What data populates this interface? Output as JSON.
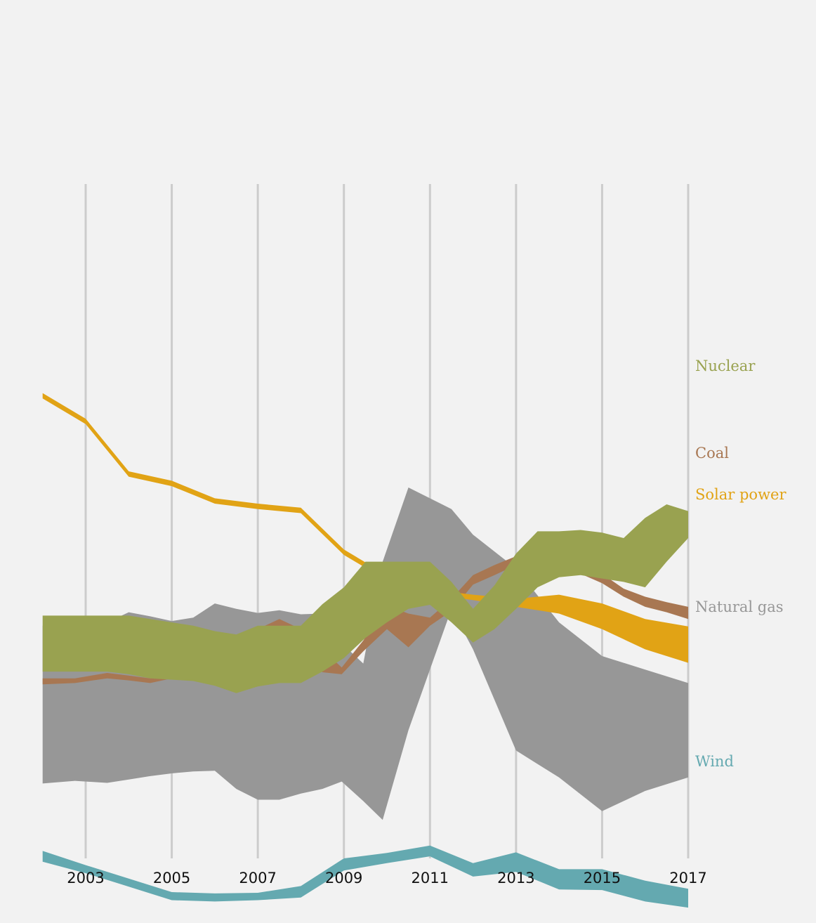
{
  "chart_data": {
    "type": "area",
    "title": "",
    "xlabel": "",
    "ylabel": "",
    "grid": "vertical",
    "legend": "inline-right",
    "x_ticks": [
      "2003",
      "2005",
      "2007",
      "2009",
      "2011",
      "2013",
      "2015",
      "2017"
    ],
    "series": [
      {
        "name": "Natural gas",
        "color": "#979797",
        "label_id": "natural-gas",
        "points": [
          [
            2002,
            0.655,
            0.889
          ],
          [
            2002.75,
            0.653,
            0.885
          ],
          [
            2003.5,
            0.65,
            0.888
          ],
          [
            2004,
            0.635,
            0.883
          ],
          [
            2004.5,
            0.641,
            0.878
          ],
          [
            2005,
            0.648,
            0.874
          ],
          [
            2005.5,
            0.643,
            0.871
          ],
          [
            2006,
            0.622,
            0.87
          ],
          [
            2006.5,
            0.63,
            0.897
          ],
          [
            2007,
            0.636,
            0.913
          ],
          [
            2007.5,
            0.632,
            0.913
          ],
          [
            2008,
            0.638,
            0.904
          ],
          [
            2008.5,
            0.637,
            0.897
          ],
          [
            2008.95,
            0.681,
            0.886
          ],
          [
            2009.45,
            0.711,
            0.915
          ],
          [
            2009.9,
            0.56,
            0.943
          ],
          [
            2010.5,
            0.45,
            0.81
          ],
          [
            2011.5,
            0.482,
            0.63
          ],
          [
            2012,
            0.52,
            0.69
          ],
          [
            2013,
            0.57,
            0.84
          ],
          [
            2014,
            0.65,
            0.88
          ],
          [
            2015,
            0.7,
            0.93
          ],
          [
            2016,
            0.72,
            0.9
          ],
          [
            2017,
            0.74,
            0.88
          ]
        ]
      },
      {
        "name": "Coal",
        "color": "#a87752",
        "label_id": "coal",
        "points": [
          [
            2002,
            0.733,
            0.742
          ],
          [
            2002.75,
            0.733,
            0.74
          ],
          [
            2003.5,
            0.725,
            0.733
          ],
          [
            2004,
            0.729,
            0.736
          ],
          [
            2004.5,
            0.733,
            0.74
          ],
          [
            2005,
            0.72,
            0.733
          ],
          [
            2005.5,
            0.705,
            0.722
          ],
          [
            2006,
            0.69,
            0.708
          ],
          [
            2006.5,
            0.677,
            0.693
          ],
          [
            2007,
            0.66,
            0.685
          ],
          [
            2007.5,
            0.645,
            0.682
          ],
          [
            2008,
            0.66,
            0.7
          ],
          [
            2008.5,
            0.69,
            0.724
          ],
          [
            2008.95,
            0.717,
            0.727
          ],
          [
            2009.45,
            0.677,
            0.693
          ],
          [
            2010,
            0.625,
            0.66
          ],
          [
            2010.5,
            0.637,
            0.687
          ],
          [
            2011,
            0.643,
            0.655
          ],
          [
            2011.5,
            0.615,
            0.633
          ],
          [
            2012,
            0.58,
            0.594
          ],
          [
            2012.5,
            0.565,
            0.58
          ],
          [
            2013,
            0.552,
            0.565
          ],
          [
            2013.5,
            0.545,
            0.56
          ],
          [
            2014,
            0.552,
            0.57
          ],
          [
            2014.5,
            0.56,
            0.578
          ],
          [
            2015,
            0.578,
            0.592
          ],
          [
            2015.5,
            0.6,
            0.612
          ],
          [
            2016,
            0.612,
            0.627
          ],
          [
            2016.5,
            0.62,
            0.635
          ],
          [
            2017,
            0.627,
            0.645
          ]
        ]
      },
      {
        "name": "Solar power",
        "color": "#e1a315",
        "label_id": "solar-power",
        "points": [
          [
            2002,
            0.31,
            0.318
          ],
          [
            2003,
            0.348,
            0.356
          ],
          [
            2004,
            0.426,
            0.434
          ],
          [
            2005,
            0.44,
            0.448
          ],
          [
            2006,
            0.466,
            0.474
          ],
          [
            2007,
            0.474,
            0.482
          ],
          [
            2008,
            0.48,
            0.488
          ],
          [
            2009,
            0.542,
            0.55
          ],
          [
            2010,
            0.58,
            0.588
          ],
          [
            2011,
            0.601,
            0.609
          ],
          [
            2012,
            0.609,
            0.617
          ],
          [
            2013,
            0.615,
            0.627
          ],
          [
            2014,
            0.609,
            0.637
          ],
          [
            2015,
            0.622,
            0.66
          ],
          [
            2016,
            0.645,
            0.69
          ],
          [
            2017,
            0.656,
            0.71
          ]
        ]
      },
      {
        "name": "Nuclear",
        "color": "#99a250",
        "label_id": "nuclear",
        "points": [
          [
            2002,
            0.64,
            0.723
          ],
          [
            2002.5,
            0.64,
            0.723
          ],
          [
            2003,
            0.64,
            0.723
          ],
          [
            2003.5,
            0.64,
            0.723
          ],
          [
            2004,
            0.64,
            0.727
          ],
          [
            2004.5,
            0.645,
            0.733
          ],
          [
            2005,
            0.65,
            0.735
          ],
          [
            2005.5,
            0.655,
            0.737
          ],
          [
            2006,
            0.663,
            0.744
          ],
          [
            2006.5,
            0.668,
            0.755
          ],
          [
            2007,
            0.655,
            0.745
          ],
          [
            2007.5,
            0.655,
            0.74
          ],
          [
            2008,
            0.655,
            0.74
          ],
          [
            2008.5,
            0.623,
            0.723
          ],
          [
            2009,
            0.598,
            0.703
          ],
          [
            2009.5,
            0.56,
            0.673
          ],
          [
            2010,
            0.56,
            0.65
          ],
          [
            2010.5,
            0.56,
            0.63
          ],
          [
            2011,
            0.56,
            0.624
          ],
          [
            2011.5,
            0.59,
            0.65
          ],
          [
            2012,
            0.63,
            0.68
          ],
          [
            2012.5,
            0.595,
            0.66
          ],
          [
            2013,
            0.548,
            0.63
          ],
          [
            2013.5,
            0.515,
            0.598
          ],
          [
            2014,
            0.515,
            0.583
          ],
          [
            2014.5,
            0.513,
            0.58
          ],
          [
            2015,
            0.517,
            0.585
          ],
          [
            2015.5,
            0.525,
            0.59
          ],
          [
            2016,
            0.495,
            0.598
          ],
          [
            2016.5,
            0.475,
            0.56
          ],
          [
            2017,
            0.485,
            0.525
          ]
        ]
      },
      {
        "name": "Wind",
        "color": "#64a9b0",
        "label_id": "wind",
        "points": [
          [
            2002,
            0.989,
            1.005
          ],
          [
            2003,
            1.01,
            1.022
          ],
          [
            2004,
            1.03,
            1.042
          ],
          [
            2005,
            1.05,
            1.062
          ],
          [
            2006,
            1.052,
            1.064
          ],
          [
            2007,
            1.051,
            1.062
          ],
          [
            2008,
            1.041,
            1.058
          ],
          [
            2009,
            1.0,
            1.018
          ],
          [
            2010,
            0.992,
            1.007
          ],
          [
            2011,
            0.981,
            0.997
          ],
          [
            2012,
            1.007,
            1.027
          ],
          [
            2013,
            0.991,
            1.02
          ],
          [
            2014,
            1.016,
            1.046
          ],
          [
            2015,
            1.016,
            1.047
          ],
          [
            2016,
            1.033,
            1.064
          ],
          [
            2017,
            1.045,
            1.073
          ]
        ]
      }
    ]
  }
}
